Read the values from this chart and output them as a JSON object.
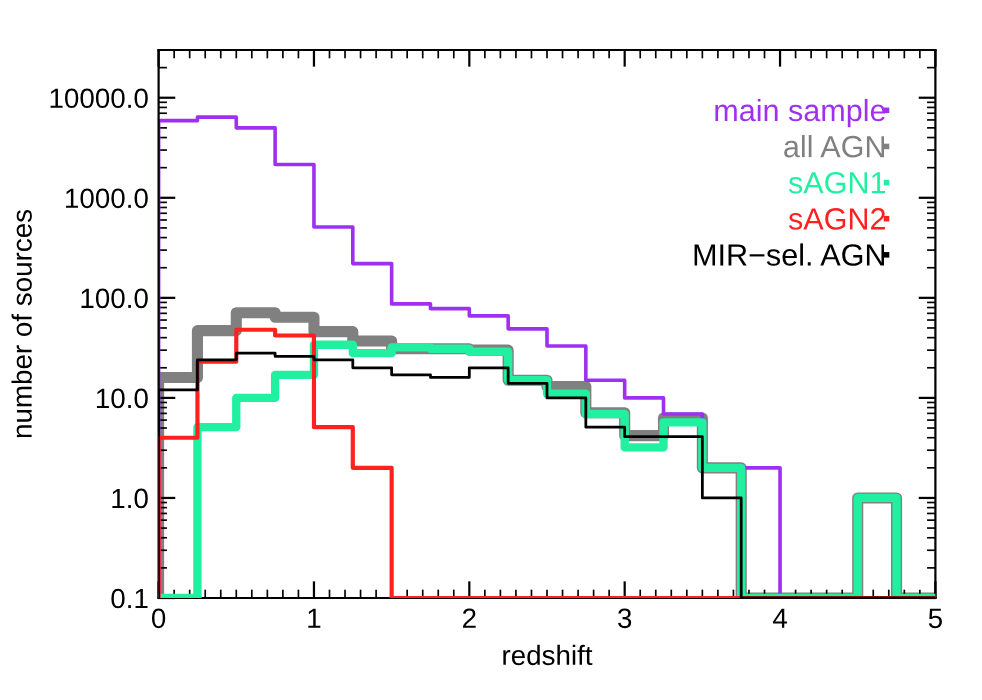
{
  "chart_data": {
    "type": "histogram",
    "xlabel": "redshift",
    "ylabel": "number of sources",
    "log": "y",
    "bins": [
      0,
      0.25,
      0.5,
      0.75,
      1,
      1.25,
      1.5,
      1.75,
      2,
      2.25,
      2.5,
      2.75,
      3,
      3.25,
      3.5,
      3.75,
      4,
      4.25,
      4.5,
      4.75,
      5
    ],
    "series": [
      {
        "name": "main sample",
        "color": "#a030f0",
        "values": [
          5900,
          6400,
          5000,
          2150,
          510,
          220,
          87,
          78,
          66,
          49,
          33,
          15,
          10,
          6.9,
          2.0,
          2.0,
          0.1,
          0.1,
          0.1,
          0.1
        ]
      },
      {
        "name": "all AGN",
        "color": "#808080",
        "values": [
          16,
          47,
          71,
          64,
          46,
          37,
          31,
          31,
          30,
          15,
          13,
          7.1,
          4.2,
          6.3,
          2.0,
          0.1,
          0.1,
          0.1,
          1.0,
          0.1
        ]
      },
      {
        "name": "sAGN1",
        "color": "#20f0a0",
        "values": [
          0.1,
          5.1,
          10,
          17,
          34,
          28,
          32,
          31,
          29,
          15,
          11,
          6.9,
          3.2,
          5.7,
          2.0,
          0.1,
          0.1,
          0.1,
          1.0,
          0.1
        ]
      },
      {
        "name": "sAGN2",
        "color": "#ff2020",
        "values": [
          4.0,
          23,
          48,
          42,
          5.1,
          2.0,
          0.1,
          0.1,
          0.1,
          0.1,
          0.1,
          0.1,
          0.1,
          0.1,
          0.1,
          0.1,
          0.1,
          0.1,
          0.1,
          0.1
        ]
      },
      {
        "name": "MIR−sel. AGN",
        "color": "#000000",
        "values": [
          12,
          24,
          28,
          26,
          24,
          20,
          17,
          16,
          20,
          14,
          10,
          5.1,
          4.1,
          4.1,
          1.0,
          0.1,
          0.1,
          0.1,
          0.1,
          0.1
        ]
      }
    ],
    "xlim": [
      0,
      5
    ],
    "xticks": [
      0,
      1,
      2,
      3,
      4,
      5
    ],
    "ylim": [
      0.1,
      30000
    ],
    "yticks": [
      0.1,
      {
        "value": 1,
        "label": "1.0"
      },
      {
        "value": 10,
        "label": "10.0"
      },
      {
        "value": 100,
        "label": "100.0"
      },
      {
        "value": 1000,
        "label": "1000.0"
      },
      {
        "value": 10000,
        "label": "10000.0"
      }
    ],
    "legend": "top right",
    "grid": false
  }
}
